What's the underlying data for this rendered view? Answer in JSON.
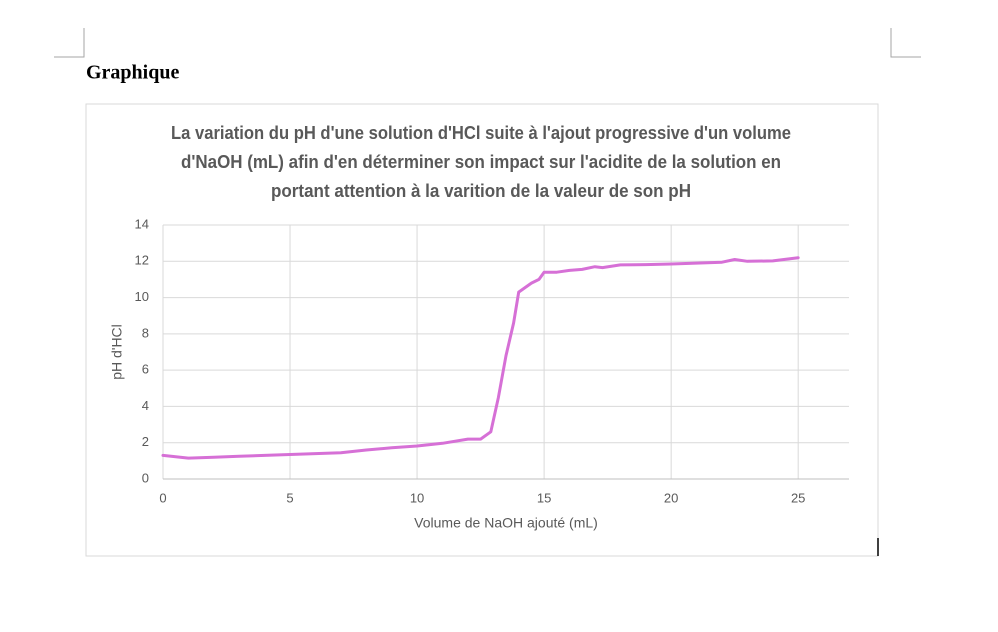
{
  "heading": "Graphique",
  "chart_data": {
    "type": "line",
    "title": [
      "La  variation du pH d'une solution d'HCl suite à l'ajout progressive d'un volume",
      "d'NaOH (mL)  afin d'en déterminer son impact sur l'acidite  de la solution en",
      "portant attention à la varition de la valeur de son pH"
    ],
    "x_label": "Volume de NaOH ajouté (mL)",
    "y_label": "pH  d'HCl",
    "x": [
      0,
      1,
      2,
      3,
      4,
      5,
      6,
      7,
      8,
      9,
      10,
      11,
      12,
      12.5,
      12.9,
      13.2,
      13.5,
      13.8,
      14,
      14.2,
      14.5,
      14.8,
      15,
      15.5,
      16,
      16.5,
      17,
      17.3,
      18,
      19,
      20,
      21,
      22,
      22.5,
      23,
      24,
      25
    ],
    "series": [
      {
        "name": "pH",
        "color": "#d670d6",
        "values": [
          1.3,
          1.15,
          1.2,
          1.25,
          1.3,
          1.35,
          1.4,
          1.45,
          1.6,
          1.72,
          1.82,
          1.97,
          2.2,
          2.2,
          2.6,
          4.5,
          6.8,
          8.6,
          10.3,
          10.5,
          10.8,
          11.0,
          11.4,
          11.4,
          11.5,
          11.55,
          11.7,
          11.65,
          11.8,
          11.82,
          11.85,
          11.9,
          11.95,
          12.1,
          12.0,
          12.02,
          12.2
        ]
      }
    ],
    "xlim": [
      0,
      27
    ],
    "xticks": [
      0,
      5,
      10,
      15,
      20,
      25
    ],
    "ylim": [
      0,
      14
    ],
    "yticks": [
      0,
      2,
      4,
      6,
      8,
      10,
      12,
      14
    ],
    "grid": true
  }
}
